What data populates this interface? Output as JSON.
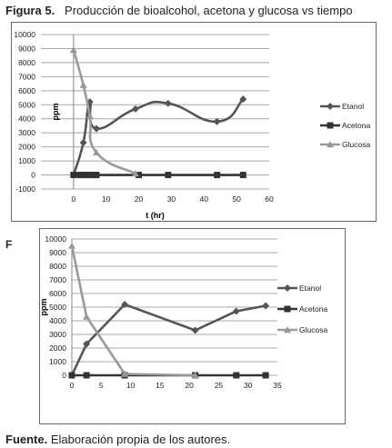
{
  "figure_label": "Figura 5.",
  "figure_title": "Producción de bioalcohol, acetona y glucosa vs tiempo",
  "fragment_label": "F",
  "source_label": "Fuente.",
  "source_text": "Elaboración propia de los autores.",
  "chart_data": [
    {
      "type": "line",
      "title": "",
      "xlabel": "t (hr)",
      "ylabel": "ppm",
      "xlim": [
        -10,
        60
      ],
      "ylim": [
        -1000,
        10000
      ],
      "xticks": [
        0,
        10,
        20,
        30,
        40,
        50,
        60
      ],
      "yticks": [
        -1000,
        0,
        1000,
        2000,
        3000,
        4000,
        5000,
        6000,
        7000,
        8000,
        9000,
        10000
      ],
      "grid": true,
      "legend": "right",
      "series": [
        {
          "name": "Etanol",
          "marker": "diamond",
          "color": "#555555",
          "smooth": true,
          "x": [
            0,
            3,
            5,
            7,
            19,
            29,
            44,
            52
          ],
          "y": [
            0,
            2300,
            5200,
            3300,
            4700,
            5100,
            3800,
            5400
          ]
        },
        {
          "name": "Acetona",
          "marker": "square",
          "color": "#333333",
          "smooth": false,
          "x": [
            0,
            2,
            3,
            4,
            5,
            6,
            7,
            20,
            29,
            44,
            52
          ],
          "y": [
            0,
            0,
            0,
            0,
            0,
            0,
            0,
            0,
            0,
            0,
            0
          ]
        },
        {
          "name": "Glucosa",
          "marker": "triangle",
          "color": "#999999",
          "smooth": true,
          "x": [
            0,
            3,
            5,
            7,
            19
          ],
          "y": [
            8900,
            6400,
            4200,
            1600,
            100
          ]
        }
      ]
    },
    {
      "type": "line",
      "title": "",
      "xlabel": "",
      "ylabel": "ppm",
      "xlim": [
        0,
        35
      ],
      "ylim": [
        0,
        10000
      ],
      "xticks": [
        0,
        5,
        10,
        15,
        20,
        25,
        30,
        35
      ],
      "yticks": [
        0,
        1000,
        2000,
        3000,
        4000,
        5000,
        6000,
        7000,
        8000,
        9000,
        10000
      ],
      "grid": true,
      "legend": "right",
      "series": [
        {
          "name": "Etanol",
          "marker": "diamond",
          "color": "#555555",
          "smooth": false,
          "x": [
            0,
            2.5,
            9,
            21,
            28,
            33
          ],
          "y": [
            0,
            2300,
            5200,
            3300,
            4700,
            5100
          ]
        },
        {
          "name": "Acetona",
          "marker": "square",
          "color": "#333333",
          "smooth": false,
          "x": [
            0,
            2.5,
            9,
            21,
            28,
            33
          ],
          "y": [
            0,
            0,
            0,
            0,
            0,
            0
          ]
        },
        {
          "name": "Glucosa",
          "marker": "triangle",
          "color": "#999999",
          "smooth": false,
          "x": [
            0,
            2.5,
            9,
            21
          ],
          "y": [
            9500,
            4300,
            100,
            0
          ]
        }
      ]
    }
  ]
}
